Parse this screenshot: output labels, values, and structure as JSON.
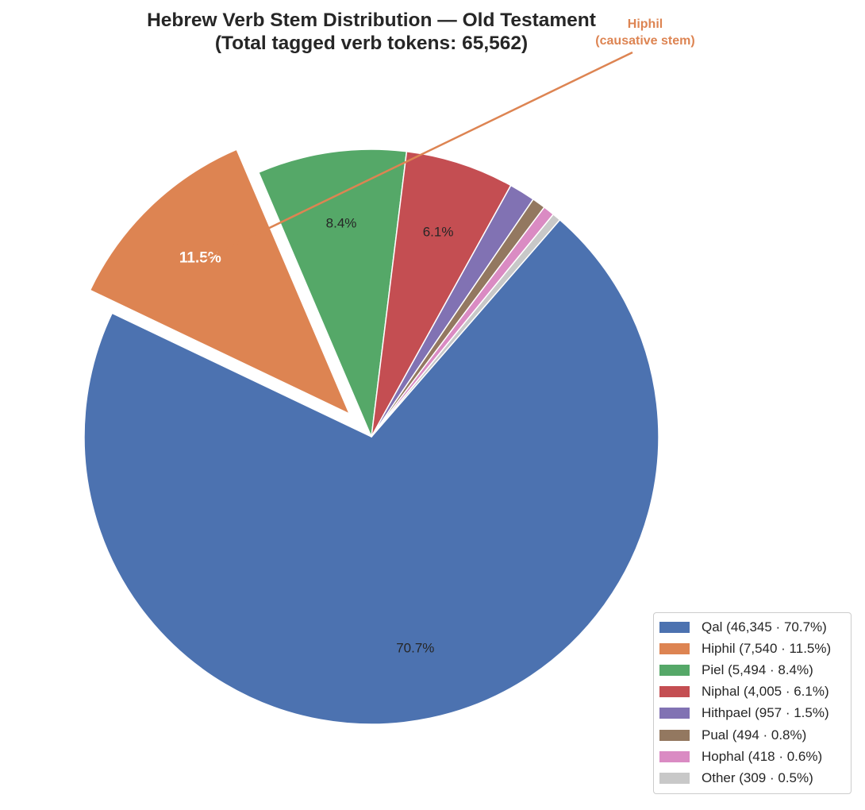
{
  "chart_data": {
    "type": "pie",
    "title": "Hebrew Verb Stem Distribution — Old Testament",
    "subtitle": "(Total tagged verb tokens: 65,562)",
    "slices": [
      {
        "name": "Qal",
        "value": 46345,
        "percent_label": "70.7%",
        "legend_label": "Qal  (46,345 · 70.7%)",
        "color": "#4c72b0"
      },
      {
        "name": "Hiphil",
        "value": 7540,
        "percent_label": "11.5%",
        "legend_label": "Hiphil  (7,540 · 11.5%)",
        "color": "#dd8452",
        "exploded": true
      },
      {
        "name": "Piel",
        "value": 5494,
        "percent_label": "8.4%",
        "legend_label": "Piel  (5,494 · 8.4%)",
        "color": "#55a868"
      },
      {
        "name": "Niphal",
        "value": 4005,
        "percent_label": "6.1%",
        "legend_label": "Niphal  (4,005 · 6.1%)",
        "color": "#c44e52"
      },
      {
        "name": "Hithpael",
        "value": 957,
        "percent_label": "",
        "legend_label": "Hithpael  (957 · 1.5%)",
        "color": "#8172b3"
      },
      {
        "name": "Pual",
        "value": 494,
        "percent_label": "",
        "legend_label": "Pual  (494 · 0.8%)",
        "color": "#937860"
      },
      {
        "name": "Hophal",
        "value": 418,
        "percent_label": "",
        "legend_label": "Hophal  (418 · 0.6%)",
        "color": "#da8bc3"
      },
      {
        "name": "Other",
        "value": 309,
        "percent_label": "",
        "legend_label": "Other  (309 · 0.5%)",
        "color": "#c8c8c8"
      }
    ],
    "annotation": {
      "line1": "Hiphil",
      "line2": "(causative stem)",
      "color": "#dd8452"
    },
    "legend_position": "lower-right"
  }
}
